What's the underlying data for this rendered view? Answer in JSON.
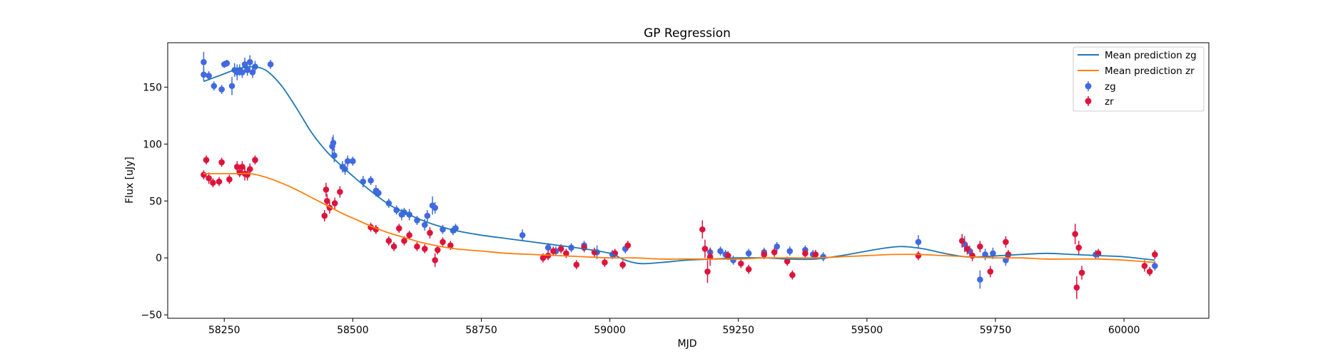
{
  "chart_data": {
    "type": "scatter",
    "title": "GP Regression",
    "xlabel": "MJD",
    "ylabel": "Flux [uJy]",
    "xlim": [
      58140,
      60165
    ],
    "ylim": [
      -53,
      189
    ],
    "xticks": [
      58250,
      58500,
      58750,
      59000,
      59250,
      59500,
      59750,
      60000
    ],
    "xtick_labels": [
      "58250",
      "58500",
      "58750",
      "59000",
      "59250",
      "59500",
      "59750",
      "60000"
    ],
    "yticks": [
      -50,
      0,
      50,
      100,
      150
    ],
    "ytick_labels": [
      "−50",
      "0",
      "50",
      "100",
      "150"
    ],
    "grid": false,
    "legend_position": "top-right",
    "colors": {
      "mean_zg": "#1f77b4",
      "mean_zr": "#ff7f0e",
      "zg_points": "#4169e1",
      "zr_points": "#dc143c"
    },
    "series": [
      {
        "name": "Mean prediction zg",
        "kind": "line",
        "x": [
          58210,
          58240,
          58270,
          58300,
          58330,
          58360,
          58390,
          58420,
          58450,
          58480,
          58510,
          58540,
          58570,
          58600,
          58630,
          58660,
          58700,
          58750,
          58800,
          58850,
          58900,
          58950,
          59000,
          59030,
          59060,
          59100,
          59150,
          59200,
          59250,
          59300,
          59350,
          59400,
          59450,
          59500,
          59540,
          59570,
          59610,
          59650,
          59690,
          59720,
          59760,
          59800,
          59850,
          59900,
          59950,
          60000,
          60060
        ],
        "y": [
          155,
          160,
          165,
          168,
          165,
          152,
          132,
          110,
          93,
          80,
          68,
          57,
          47,
          40,
          34,
          29,
          24,
          20,
          17,
          14,
          11,
          8,
          4,
          -2,
          -5,
          -4,
          -2,
          -1,
          0,
          0,
          -1,
          -1,
          2,
          6,
          9,
          10,
          8,
          4,
          1,
          1,
          2,
          3,
          4,
          3,
          2,
          1,
          -2
        ]
      },
      {
        "name": "Mean prediction zr",
        "kind": "line",
        "x": [
          58210,
          58240,
          58270,
          58300,
          58330,
          58360,
          58390,
          58420,
          58450,
          58480,
          58510,
          58540,
          58570,
          58600,
          58630,
          58660,
          58700,
          58750,
          58800,
          58850,
          58900,
          58950,
          59000,
          59050,
          59100,
          59150,
          59200,
          59250,
          59300,
          59350,
          59400,
          59450,
          59500,
          59550,
          59600,
          59650,
          59700,
          59750,
          59800,
          59850,
          59900,
          59950,
          60000,
          60060
        ],
        "y": [
          74,
          74,
          74,
          74,
          71,
          66,
          60,
          53,
          46,
          39,
          33,
          27,
          22,
          18,
          14,
          11,
          8,
          6,
          4,
          3,
          2,
          1,
          0,
          0,
          -1,
          -1,
          -1,
          -1,
          0,
          0,
          0,
          1,
          2,
          3,
          3,
          2,
          1,
          0,
          0,
          -1,
          -1,
          -1,
          -2,
          -4
        ]
      },
      {
        "name": "zg",
        "kind": "errorbar",
        "points": [
          [
            58210,
            172,
            9
          ],
          [
            58210,
            161,
            6
          ],
          [
            58220,
            160,
            4
          ],
          [
            58230,
            151,
            4
          ],
          [
            58245,
            148,
            4
          ],
          [
            58250,
            170,
            3
          ],
          [
            58255,
            171,
            3
          ],
          [
            58265,
            151,
            8
          ],
          [
            58270,
            165,
            6
          ],
          [
            58275,
            163,
            7
          ],
          [
            58280,
            165,
            5
          ],
          [
            58285,
            163,
            5
          ],
          [
            58290,
            170,
            6
          ],
          [
            58295,
            165,
            5
          ],
          [
            58300,
            172,
            6
          ],
          [
            58305,
            163,
            5
          ],
          [
            58310,
            168,
            5
          ],
          [
            58340,
            170,
            4
          ],
          [
            58460,
            98,
            8
          ],
          [
            58462,
            101,
            7
          ],
          [
            58464,
            90,
            6
          ],
          [
            58480,
            80,
            5
          ],
          [
            58485,
            78,
            5
          ],
          [
            58490,
            85,
            5
          ],
          [
            58500,
            85,
            4
          ],
          [
            58520,
            67,
            5
          ],
          [
            58535,
            68,
            4
          ],
          [
            58545,
            59,
            5
          ],
          [
            58550,
            57,
            4
          ],
          [
            58570,
            48,
            4
          ],
          [
            58585,
            42,
            4
          ],
          [
            58595,
            38,
            5
          ],
          [
            58600,
            40,
            4
          ],
          [
            58610,
            38,
            5
          ],
          [
            58625,
            33,
            4
          ],
          [
            58640,
            29,
            5
          ],
          [
            58645,
            37,
            5
          ],
          [
            58655,
            46,
            8
          ],
          [
            58660,
            44,
            5
          ],
          [
            58675,
            25,
            4
          ],
          [
            58695,
            24,
            4
          ],
          [
            58700,
            26,
            4
          ],
          [
            58830,
            20,
            5
          ],
          [
            58880,
            9,
            4
          ],
          [
            58895,
            6,
            4
          ],
          [
            58925,
            9,
            4
          ],
          [
            58950,
            11,
            4
          ],
          [
            58975,
            5,
            6
          ],
          [
            59005,
            3,
            4
          ],
          [
            59030,
            8,
            4
          ],
          [
            59195,
            5,
            4
          ],
          [
            59215,
            6,
            4
          ],
          [
            59225,
            3,
            4
          ],
          [
            59240,
            -2,
            4
          ],
          [
            59270,
            4,
            4
          ],
          [
            59300,
            5,
            4
          ],
          [
            59325,
            10,
            4
          ],
          [
            59350,
            6,
            4
          ],
          [
            59380,
            7,
            4
          ],
          [
            59395,
            3,
            4
          ],
          [
            59415,
            1,
            4
          ],
          [
            59600,
            14,
            6
          ],
          [
            59690,
            12,
            7
          ],
          [
            59700,
            6,
            5
          ],
          [
            59720,
            -19,
            8
          ],
          [
            59730,
            3,
            5
          ],
          [
            59745,
            4,
            5
          ],
          [
            59770,
            -2,
            5
          ],
          [
            59945,
            3,
            4
          ],
          [
            60060,
            -7,
            4
          ]
        ]
      },
      {
        "name": "zr",
        "kind": "errorbar",
        "points": [
          [
            58210,
            73,
            4
          ],
          [
            58215,
            86,
            4
          ],
          [
            58220,
            70,
            5
          ],
          [
            58228,
            66,
            4
          ],
          [
            58240,
            67,
            4
          ],
          [
            58245,
            84,
            4
          ],
          [
            58260,
            69,
            4
          ],
          [
            58275,
            80,
            5
          ],
          [
            58280,
            75,
            4
          ],
          [
            58285,
            80,
            5
          ],
          [
            58290,
            74,
            6
          ],
          [
            58295,
            73,
            5
          ],
          [
            58300,
            78,
            5
          ],
          [
            58310,
            86,
            4
          ],
          [
            58445,
            37,
            5
          ],
          [
            58448,
            60,
            6
          ],
          [
            58450,
            50,
            6
          ],
          [
            58455,
            44,
            5
          ],
          [
            58465,
            48,
            5
          ],
          [
            58475,
            58,
            5
          ],
          [
            58535,
            27,
            4
          ],
          [
            58545,
            25,
            4
          ],
          [
            58570,
            15,
            4
          ],
          [
            58580,
            10,
            4
          ],
          [
            58590,
            26,
            4
          ],
          [
            58600,
            15,
            4
          ],
          [
            58610,
            20,
            4
          ],
          [
            58625,
            10,
            4
          ],
          [
            58640,
            8,
            4
          ],
          [
            58650,
            22,
            5
          ],
          [
            58660,
            -2,
            6
          ],
          [
            58665,
            7,
            4
          ],
          [
            58675,
            14,
            4
          ],
          [
            58690,
            11,
            4
          ],
          [
            58870,
            0,
            4
          ],
          [
            58880,
            2,
            4
          ],
          [
            58890,
            6,
            4
          ],
          [
            58905,
            8,
            4
          ],
          [
            58915,
            4,
            4
          ],
          [
            58935,
            -6,
            4
          ],
          [
            58950,
            9,
            4
          ],
          [
            58970,
            5,
            4
          ],
          [
            58990,
            -4,
            4
          ],
          [
            59010,
            4,
            4
          ],
          [
            59025,
            -6,
            4
          ],
          [
            59035,
            11,
            4
          ],
          [
            59180,
            25,
            8
          ],
          [
            59185,
            8,
            8
          ],
          [
            59190,
            -12,
            10
          ],
          [
            59195,
            1,
            8
          ],
          [
            59230,
            2,
            4
          ],
          [
            59255,
            -5,
            4
          ],
          [
            59270,
            -10,
            4
          ],
          [
            59300,
            3,
            4
          ],
          [
            59320,
            5,
            4
          ],
          [
            59345,
            -3,
            4
          ],
          [
            59355,
            -15,
            4
          ],
          [
            59380,
            4,
            4
          ],
          [
            59400,
            3,
            4
          ],
          [
            59600,
            2,
            4
          ],
          [
            59685,
            15,
            6
          ],
          [
            59695,
            8,
            5
          ],
          [
            59705,
            2,
            5
          ],
          [
            59720,
            10,
            5
          ],
          [
            59740,
            -12,
            5
          ],
          [
            59770,
            14,
            5
          ],
          [
            59775,
            3,
            4
          ],
          [
            59905,
            21,
            9
          ],
          [
            59908,
            -26,
            10
          ],
          [
            59912,
            9,
            6
          ],
          [
            59918,
            -13,
            6
          ],
          [
            59950,
            4,
            4
          ],
          [
            60040,
            -7,
            5
          ],
          [
            60050,
            -12,
            4
          ],
          [
            60060,
            3,
            4
          ]
        ]
      }
    ]
  }
}
